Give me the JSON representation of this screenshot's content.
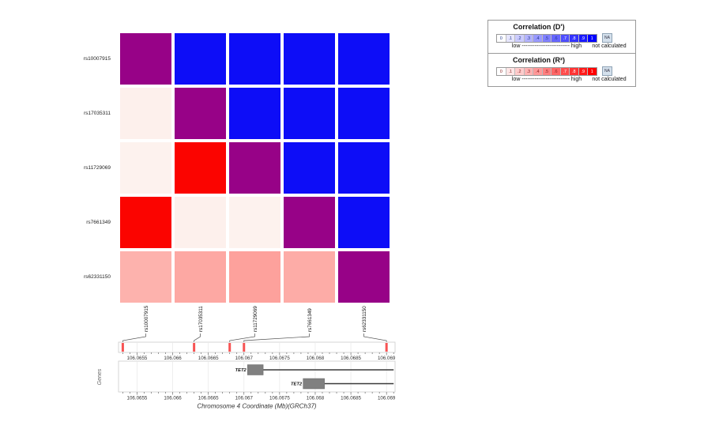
{
  "colors": {
    "diagonal_purple": "#970287",
    "dprime_blue": "#0D0DF7",
    "r2_red": "#FB0400",
    "snp_tick_red": "#F75353",
    "gene_box_gray": "#808080",
    "gene_line": "#3A3A3A",
    "track_border": "#CCCCCC",
    "grid_line": "#E8E8E8",
    "tick_color": "#555555",
    "label_color": "#333333"
  },
  "heatmap": {
    "row_labels": [
      "rs10007915",
      "rs17035311",
      "rs11729069",
      "rs7661349",
      "rs62331150"
    ],
    "cell_colors": [
      [
        "#970287",
        "#0D0DF7",
        "#0D0DF7",
        "#0D0DF7",
        "#0D0DF7"
      ],
      [
        "#FDF0EC",
        "#970287",
        "#0D0DF7",
        "#0D0DF7",
        "#0D0DF7"
      ],
      [
        "#FDF2EE",
        "#FB0400",
        "#970287",
        "#0D0DF7",
        "#0D0DF7"
      ],
      [
        "#FB0400",
        "#FDF0EC",
        "#FDF2EE",
        "#970287",
        "#0D0DF7"
      ],
      [
        "#FDB2AD",
        "#FDA8A3",
        "#FDA19C",
        "#FDACA7",
        "#970287"
      ]
    ]
  },
  "legend": {
    "panels": [
      {
        "title": "Correlation  (D')",
        "base": "blue",
        "scale_labels": [
          "0",
          ".1",
          ".2",
          ".3",
          ".4",
          ".5",
          ".6",
          ".7",
          ".8",
          ".9",
          "1"
        ],
        "range_label": "low -------------------------- high",
        "na_label": "NA",
        "na_caption": "not calculated"
      },
      {
        "title": "Correlation  (R²)",
        "base": "red",
        "scale_labels": [
          "0",
          ".1",
          ".2",
          ".3",
          ".4",
          ".5",
          ".6",
          ".7",
          ".8",
          ".9",
          "1"
        ],
        "range_label": "low -------------------------- high",
        "na_label": "NA",
        "na_caption": "not calculated"
      }
    ]
  },
  "tracks": {
    "axis": {
      "domain_mb": [
        106.06524,
        106.06912
      ],
      "major_tick_values": [
        106.0655,
        106.066,
        106.0665,
        106.067,
        106.0675,
        106.068,
        106.0685,
        106.069
      ],
      "major_tick_labels": [
        "106.0655",
        "106.066",
        "106.0665",
        "106.067",
        "106.0675",
        "106.068",
        "106.0685",
        "106.069"
      ],
      "minor_step_mb": 0.0001,
      "title": "Chromosome 4 Coordinate (Mb)(GRCh37)"
    },
    "snp_positions_mb": [
      106.0653,
      106.0663,
      106.0668,
      106.067,
      106.069
    ],
    "snp_names": [
      "rs10007915",
      "rs17035311",
      "rs11729069",
      "rs7661349",
      "rs62331150"
    ],
    "genes_axis_label": "Genes",
    "genes": [
      {
        "name": "TET2",
        "exon_start_mb": 106.06705,
        "exon_end_mb": 106.06727,
        "line_end_mb": 106.0691
      },
      {
        "name": "TET2",
        "exon_start_mb": 106.06783,
        "exon_end_mb": 106.06813,
        "line_end_mb": 106.0691
      }
    ]
  },
  "chart_data": {
    "type": "heatmap",
    "subtype": "linkage-disequilibrium-matrix",
    "title": "",
    "snps": [
      "rs10007915",
      "rs17035311",
      "rs11729069",
      "rs7661349",
      "rs62331150"
    ],
    "snp_positions_mb": [
      106.0653,
      106.0663,
      106.0668,
      106.067,
      106.069
    ],
    "upper_triangle_metric": "D'",
    "lower_triangle_metric": "R²",
    "matrix_note": "upper triangle = D' (blue scale), lower triangle = R² (red scale, values estimated from color), diagonal = self-comparison (purple)",
    "matrix": [
      [
        null,
        1.0,
        1.0,
        1.0,
        1.0
      ],
      [
        0.05,
        null,
        1.0,
        1.0,
        1.0
      ],
      [
        0.04,
        1.0,
        null,
        1.0,
        1.0
      ],
      [
        1.0,
        0.05,
        0.04,
        null,
        1.0
      ],
      [
        0.3,
        0.34,
        0.37,
        0.32,
        null
      ]
    ],
    "x_axis": {
      "label": "Chromosome 4 Coordinate (Mb)(GRCh37)",
      "range": [
        106.06524,
        106.06912
      ],
      "ticks": [
        106.0655,
        106.066,
        106.0665,
        106.067,
        106.0675,
        106.068,
        106.0685,
        106.069
      ]
    },
    "gene_track": {
      "ylabel": "Genes",
      "genes": [
        {
          "name": "TET2",
          "exon_start_mb": 106.06705,
          "exon_end_mb": 106.06727,
          "extends_to_mb": 106.0691
        },
        {
          "name": "TET2",
          "exon_start_mb": 106.06783,
          "exon_end_mb": 106.06813,
          "extends_to_mb": 106.0691
        }
      ]
    },
    "legend": [
      "Correlation (D') blue scale 0–1 with NA = not calculated",
      "Correlation (R²) red scale 0–1 with NA = not calculated"
    ]
  }
}
